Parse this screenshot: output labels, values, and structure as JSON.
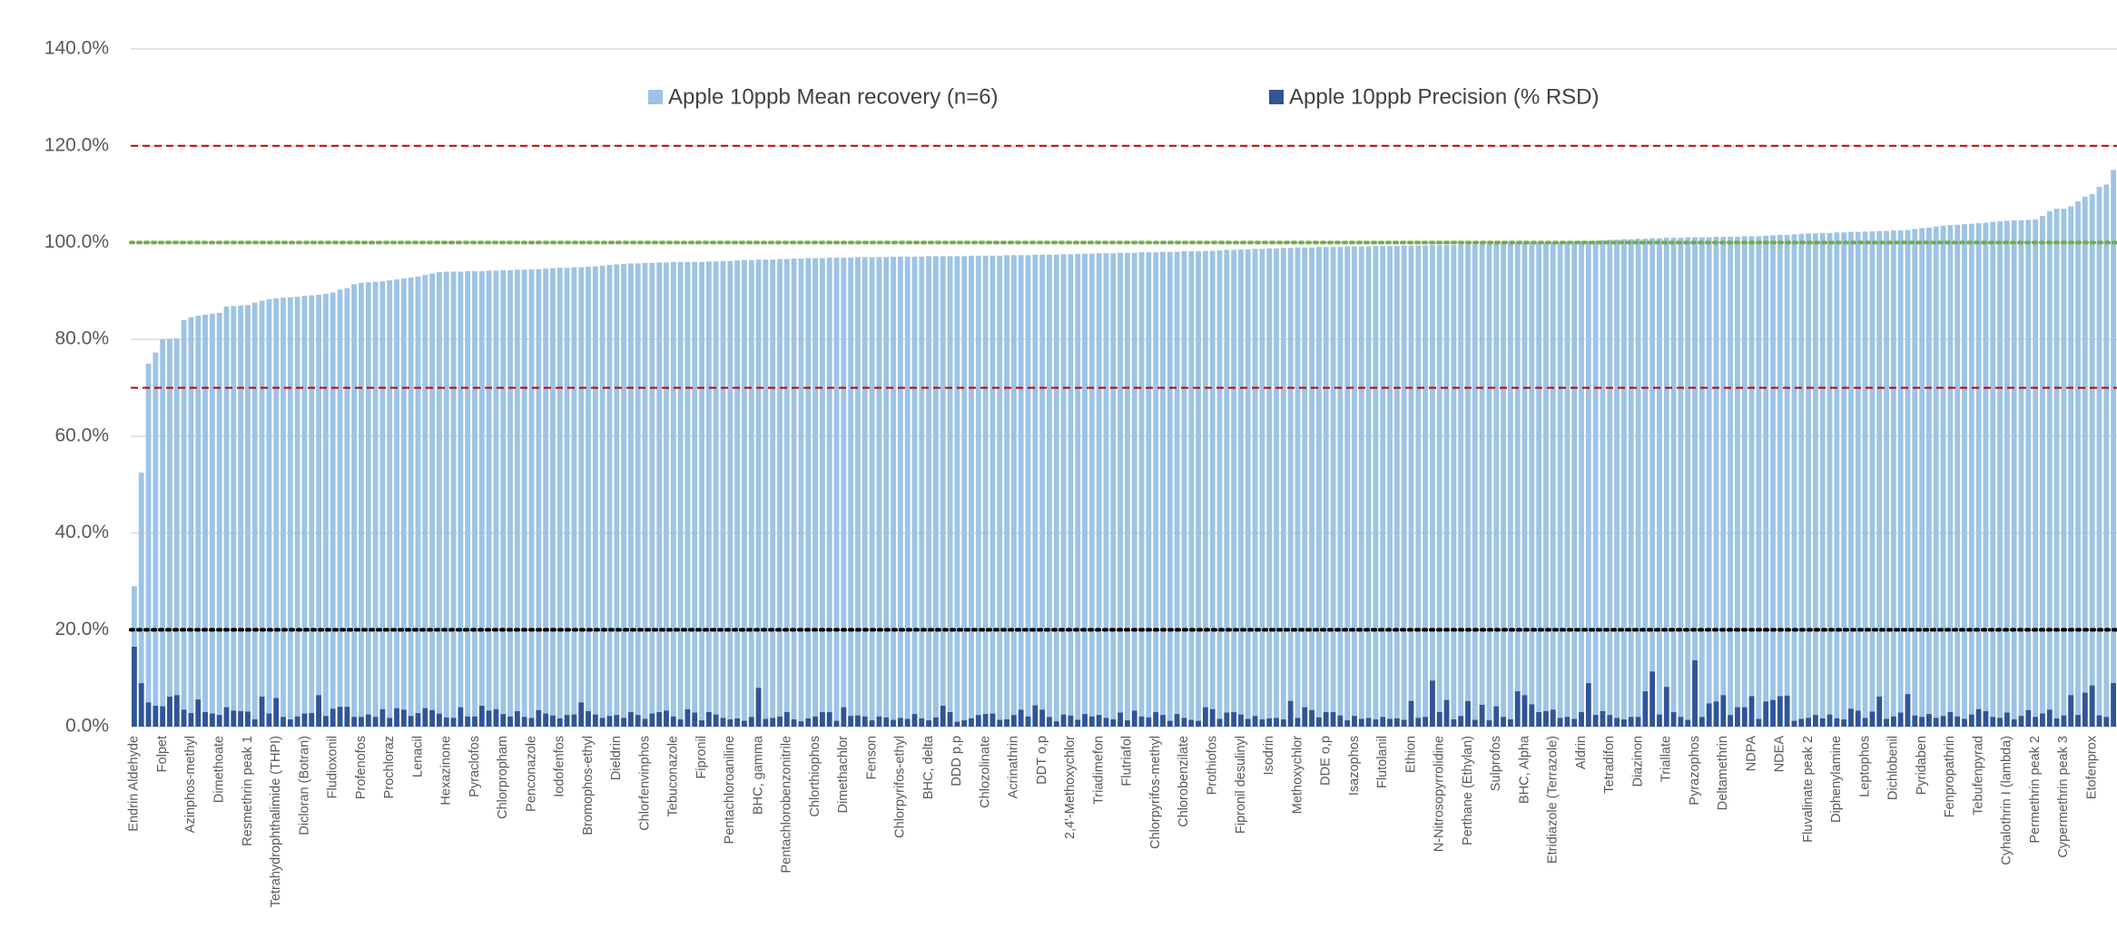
{
  "chart_data": {
    "type": "bar",
    "legend": "top",
    "grid": true,
    "ylim": [
      0,
      140
    ],
    "yticks": [
      {
        "value": 0,
        "label": "0.0%"
      },
      {
        "value": 20,
        "label": "20.0%"
      },
      {
        "value": 40,
        "label": "40.0%"
      },
      {
        "value": 60,
        "label": "60.0%"
      },
      {
        "value": 80,
        "label": "80.0%"
      },
      {
        "value": 100,
        "label": "100.0%"
      },
      {
        "value": 120,
        "label": "120.0%"
      },
      {
        "value": 140,
        "label": "140.0%"
      }
    ],
    "reference_lines": [
      {
        "value": 120,
        "color": "#c00000",
        "style": "dashed"
      },
      {
        "value": 100,
        "color": "#70ad47",
        "style": "dotted"
      },
      {
        "value": 70,
        "color": "#c00000",
        "style": "dashed"
      },
      {
        "value": 20,
        "color": "#000000",
        "style": "dotted"
      }
    ],
    "categories": [
      "Endrin Aldehyde",
      null,
      null,
      null,
      "Folpet",
      null,
      null,
      null,
      "Azinphos-methyl",
      null,
      null,
      null,
      "Dimethoate",
      null,
      null,
      null,
      "Resmethrin peak 1",
      null,
      null,
      null,
      "Tetrahydrophthalimide (THPI)",
      null,
      null,
      null,
      "Dicloran (Botran)",
      null,
      null,
      null,
      "Fludioxonil",
      null,
      null,
      null,
      "Profenofos",
      null,
      null,
      null,
      "Prochloraz",
      null,
      null,
      null,
      "Lenacil",
      null,
      null,
      null,
      "Hexazinone",
      null,
      null,
      null,
      "Pyraclofos",
      null,
      null,
      null,
      "Chlorpropham",
      null,
      null,
      null,
      "Penconazole",
      null,
      null,
      null,
      "Iodofenfos",
      null,
      null,
      null,
      "Bromophos-ethyl",
      null,
      null,
      null,
      "Dieldrin",
      null,
      null,
      null,
      "Chlorfenvinphos",
      null,
      null,
      null,
      "Tebuconazole",
      null,
      null,
      null,
      "Fipronil",
      null,
      null,
      null,
      "Pentachloroaniline",
      null,
      null,
      null,
      "BHC, gamma",
      null,
      null,
      null,
      "Pentachlorobenzonitrile",
      null,
      null,
      null,
      "Chlorthiophos",
      null,
      null,
      null,
      "Dimethachlor",
      null,
      null,
      null,
      "Fenson",
      null,
      null,
      null,
      "Chlorpyrifos-ethyl",
      null,
      null,
      null,
      "BHC, delta",
      null,
      null,
      null,
      "DDD p,p",
      null,
      null,
      null,
      "Chlozolinate",
      null,
      null,
      null,
      "Acrinathrin",
      null,
      null,
      null,
      "DDT o,p",
      null,
      null,
      null,
      "2,4'-Methoxychlor",
      null,
      null,
      null,
      "Triadimefon",
      null,
      null,
      null,
      "Flutriafol",
      null,
      null,
      null,
      "Chlorpyrifos-methyl",
      null,
      null,
      null,
      "Chlorobenzilate",
      null,
      null,
      null,
      "Prothiofos",
      null,
      null,
      null,
      "Fipronil desulinyl",
      null,
      null,
      null,
      "Isodrin",
      null,
      null,
      null,
      "Methoxychlor",
      null,
      null,
      null,
      "DDE o,p",
      null,
      null,
      null,
      "Isazophos",
      null,
      null,
      null,
      "Flutolanil",
      null,
      null,
      null,
      "Ethion",
      null,
      null,
      null,
      "N-Nitrosopyrrolidine",
      null,
      null,
      null,
      "Perthane (Ethylan)",
      null,
      null,
      null,
      "Sulprofos",
      null,
      null,
      null,
      "BHC, Alpha",
      null,
      null,
      null,
      "Etridiazole (Terrazole)",
      null,
      null,
      null,
      "Aldrin",
      null,
      null,
      null,
      "Tetradifon",
      null,
      null,
      null,
      "Diazinon",
      null,
      null,
      null,
      "Triallate",
      null,
      null,
      null,
      "Pyrazophos",
      null,
      null,
      null,
      "Deltamethrin",
      null,
      null,
      null,
      "NDPA",
      null,
      null,
      null,
      "NDEA",
      null,
      null,
      null,
      "Fluvalinate peak 2",
      null,
      null,
      null,
      "Diphenylamine",
      null,
      null,
      null,
      "Leptophos",
      null,
      null,
      null,
      "Dichlobenil",
      null,
      null,
      null,
      "Pyridaben",
      null,
      null,
      null,
      "Fenpropathrin",
      null,
      null,
      null,
      "Tebufenpyrad",
      null,
      null,
      null,
      "Cyhalothrin I (lambda)",
      null,
      null,
      null,
      "Permethrin peak 2",
      null,
      null,
      null,
      "Cypermethrin peak 3",
      null,
      null,
      null,
      "Etofenprox",
      null,
      null,
      null
    ],
    "series": [
      {
        "name": "Apple 10ppb Mean recovery (n=6)",
        "color": "#9dc3e6",
        "values": [
          29,
          52.5,
          75,
          77.3,
          80,
          80.1,
          80.2,
          84,
          84.6,
          84.9,
          85.1,
          85.3,
          85.5,
          86.8,
          86.9,
          87,
          87.1,
          87.6,
          88,
          88.3,
          88.5,
          88.6,
          88.7,
          88.8,
          89,
          89.1,
          89.2,
          89.4,
          89.7,
          90.3,
          90.6,
          91.4,
          91.7,
          91.8,
          91.9,
          92,
          92.2,
          92.4,
          92.6,
          92.8,
          93,
          93.3,
          93.6,
          93.9,
          94,
          94,
          94,
          94.1,
          94.1,
          94.1,
          94.2,
          94.2,
          94.3,
          94.3,
          94.4,
          94.4,
          94.5,
          94.5,
          94.6,
          94.7,
          94.8,
          94.8,
          94.9,
          94.9,
          95,
          95.1,
          95.2,
          95.4,
          95.5,
          95.6,
          95.7,
          95.7,
          95.8,
          95.8,
          95.9,
          95.9,
          96,
          96,
          96,
          96,
          96,
          96.1,
          96.1,
          96.2,
          96.2,
          96.3,
          96.4,
          96.4,
          96.5,
          96.5,
          96.5,
          96.6,
          96.6,
          96.7,
          96.7,
          96.8,
          96.8,
          96.8,
          96.9,
          96.9,
          96.9,
          96.9,
          97,
          97,
          97,
          97,
          97,
          97.1,
          97.1,
          97.1,
          97.1,
          97.1,
          97.2,
          97.2,
          97.2,
          97.2,
          97.2,
          97.2,
          97.3,
          97.3,
          97.3,
          97.3,
          97.3,
          97.4,
          97.4,
          97.4,
          97.4,
          97.5,
          97.5,
          97.5,
          97.5,
          97.6,
          97.6,
          97.7,
          97.7,
          97.7,
          97.8,
          97.8,
          97.8,
          97.9,
          97.9,
          97.9,
          98,
          98,
          98,
          98.1,
          98.1,
          98.1,
          98.2,
          98.2,
          98.2,
          98.3,
          98.3,
          98.4,
          98.5,
          98.5,
          98.6,
          98.6,
          98.7,
          98.7,
          98.8,
          98.8,
          98.9,
          98.9,
          99,
          99,
          99,
          99.1,
          99.1,
          99.1,
          99.1,
          99.2,
          99.2,
          99.2,
          99.2,
          99.3,
          99.3,
          99.3,
          99.3,
          99.4,
          99.4,
          99.4,
          99.4,
          99.5,
          99.5,
          99.5,
          99.5,
          99.6,
          99.6,
          99.6,
          99.7,
          99.7,
          99.8,
          99.8,
          99.8,
          99.9,
          99.9,
          99.9,
          100,
          100,
          100.1,
          100.1,
          100.2,
          100.2,
          100.3,
          100.3,
          100.4,
          100.5,
          100.6,
          100.6,
          100.7,
          100.7,
          100.8,
          100.8,
          100.9,
          100.9,
          101,
          101,
          101,
          101.1,
          101.1,
          101.1,
          101.1,
          101.2,
          101.2,
          101.2,
          101.2,
          101.3,
          101.3,
          101.3,
          101.4,
          101.5,
          101.6,
          101.6,
          101.7,
          101.8,
          101.9,
          101.9,
          102,
          102,
          102.1,
          102.1,
          102.2,
          102.2,
          102.3,
          102.3,
          102.4,
          102.4,
          102.5,
          102.5,
          102.6,
          102.8,
          103,
          103.1,
          103.3,
          103.5,
          103.6,
          103.7,
          103.8,
          103.9,
          104,
          104.1,
          104.3,
          104.4,
          104.5,
          104.6,
          104.6,
          104.7,
          104.8,
          105.5,
          106.5,
          107,
          107,
          107.5,
          108.5,
          109.5,
          110,
          111.5,
          112,
          115
        ]
      },
      {
        "name": "Apple 10ppb Precision (% RSD)",
        "color": "#2f5597",
        "values": [
          16.5,
          9,
          5,
          4.3,
          4.2,
          6.2,
          6.5,
          3.5,
          2.8,
          5.6,
          3,
          2.7,
          2.4,
          4,
          3.3,
          3.2,
          3.1,
          1.5,
          6.2,
          2.7,
          5.9,
          2,
          1.5,
          2.1,
          2.7,
          2.8,
          6.5,
          2.2,
          3.7,
          4.1,
          4.1,
          2,
          2,
          2.5,
          2,
          3.6,
          1.8,
          3.8,
          3.5,
          2.2,
          2.8,
          3.8,
          3.4,
          2.7,
          1.9,
          1.8,
          4,
          2.1,
          2.1,
          4.3,
          3.3,
          3.6,
          2.6,
          2.1,
          3.2,
          2,
          1.8,
          3.4,
          2.7,
          2.3,
          1.7,
          2.4,
          2.5,
          5,
          3.2,
          2.5,
          1.8,
          2.2,
          2.4,
          1.8,
          3,
          2.4,
          1.6,
          2.7,
          3,
          3.3,
          2.1,
          1.5,
          3.6,
          2.9,
          1.3,
          3,
          2.5,
          1.8,
          1.5,
          1.7,
          1.2,
          2,
          8,
          1.6,
          1.8,
          2.1,
          3,
          1.5,
          1.1,
          1.7,
          2.1,
          3,
          3,
          1.2,
          4,
          2.2,
          2.3,
          2.1,
          1.3,
          2.1,
          1.9,
          1.4,
          1.8,
          1.6,
          2.6,
          1.7,
          1.3,
          1.9,
          4.3,
          3,
          1,
          1.3,
          1.7,
          2.4,
          2.6,
          2.7,
          1.4,
          1.5,
          2.4,
          3.5,
          2.1,
          4.4,
          3.5,
          2,
          1.1,
          2.5,
          2.3,
          1.4,
          2.6,
          2.1,
          2.4,
          1.8,
          1.5,
          2.9,
          1.3,
          3.3,
          2.1,
          1.9,
          3,
          2.4,
          1.2,
          2.6,
          1.8,
          1.4,
          1.2,
          4,
          3.6,
          1.6,
          2.9,
          3,
          2.5,
          1.6,
          2.2,
          1.5,
          1.7,
          1.8,
          1.5,
          5.3,
          1.8,
          4,
          3.4,
          1.9,
          3,
          3,
          2.3,
          1.3,
          2.2,
          1.6,
          1.8,
          1.5,
          2,
          1.6,
          1.7,
          1.4,
          5.3,
          1.8,
          2,
          9.5,
          3,
          5.5,
          1.5,
          2.2,
          5.3,
          1.4,
          4.5,
          1.3,
          4.2,
          2,
          1.5,
          7.3,
          6.5,
          4.6,
          3,
          3.2,
          3.5,
          1.8,
          2,
          1.6,
          3,
          9,
          2.4,
          3.2,
          2.4,
          1.8,
          1.5,
          2,
          2,
          7.3,
          11.4,
          2.5,
          8.2,
          3,
          2,
          1.4,
          13.7,
          2,
          4.8,
          5.2,
          6.5,
          2.4,
          4,
          4,
          6.3,
          1.6,
          5.2,
          5.5,
          6.3,
          6.4,
          1.2,
          1.6,
          1.8,
          2.4,
          1.7,
          2.5,
          1.7,
          1.5,
          3.7,
          3.3,
          1.8,
          3.1,
          6.2,
          1.6,
          2.1,
          2.9,
          6.7,
          2.3,
          2,
          2.6,
          1.8,
          2.2,
          3,
          2.1,
          1.6,
          2.5,
          3.6,
          3.2,
          2,
          1.8,
          2.9,
          1.5,
          2.2,
          3.4,
          2,
          2.7,
          3.5,
          1.7,
          2.3,
          6.5,
          2.4,
          7,
          8.5,
          2.3,
          2,
          9
        ]
      }
    ]
  }
}
